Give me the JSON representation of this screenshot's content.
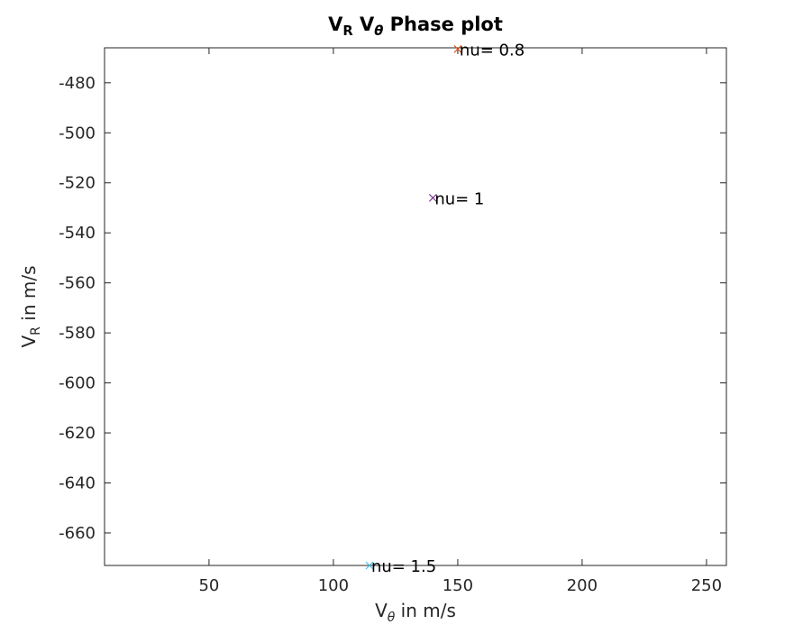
{
  "chart_data": {
    "type": "scatter",
    "title": {
      "parts": [
        {
          "text": "V",
          "style": "normal"
        },
        {
          "text": "R",
          "style": "sub"
        },
        {
          "text": " V",
          "style": "normal"
        },
        {
          "text": "θ",
          "style": "sub-italic"
        },
        {
          "text": " Phase plot",
          "style": "normal"
        }
      ]
    },
    "xlabel": {
      "parts": [
        {
          "text": "V",
          "style": "normal"
        },
        {
          "text": "θ",
          "style": "sub-italic"
        },
        {
          "text": " in m/s",
          "style": "normal"
        }
      ]
    },
    "ylabel": {
      "parts": [
        {
          "text": "V",
          "style": "normal"
        },
        {
          "text": "R",
          "style": "sub"
        },
        {
          "text": " in m/s",
          "style": "normal"
        }
      ]
    },
    "xlim": [
      8,
      258
    ],
    "ylim": [
      -673,
      -466
    ],
    "xticks": [
      50,
      100,
      150,
      200,
      250
    ],
    "yticks": [
      -480,
      -500,
      -520,
      -540,
      -560,
      -580,
      -600,
      -620,
      -640,
      -660
    ],
    "grid": false,
    "series": [
      {
        "x": 150,
        "y": -466.5,
        "marker": "x",
        "color": "#d95319",
        "label": "nu= 0.8"
      },
      {
        "x": 140,
        "y": -526,
        "marker": "x",
        "color": "#7e2f8e",
        "label": "nu= 1"
      },
      {
        "x": 114.5,
        "y": -673,
        "marker": "x",
        "color": "#4dbeee",
        "label": "nu= 1.5"
      }
    ],
    "colors": {
      "axis": "#262626",
      "title": "#000000"
    }
  }
}
